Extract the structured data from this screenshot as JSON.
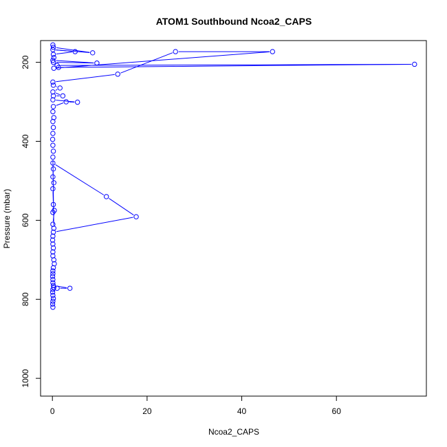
{
  "chart_data": {
    "type": "line",
    "title": "ATOM1 Southbound Ncoa2_CAPS",
    "xlabel": "Ncoa2_CAPS",
    "ylabel": "Pressure (mbar)",
    "xlim": [
      -2.5,
      79
    ],
    "ylim": [
      1045,
      145
    ],
    "y_reversed": true,
    "x_ticks": [
      0,
      20,
      40,
      60
    ],
    "y_ticks": [
      200,
      400,
      600,
      800,
      1000
    ],
    "grid": false,
    "series": [
      {
        "color": "#0000ff",
        "marker": "open-circle",
        "points": [
          [
            0.1,
            820
          ],
          [
            0.05,
            812
          ],
          [
            0.1,
            805
          ],
          [
            0.2,
            798
          ],
          [
            0.1,
            790
          ],
          [
            0.05,
            782
          ],
          [
            0.1,
            775
          ],
          [
            0.3,
            770
          ],
          [
            1,
            772
          ],
          [
            3.7,
            772
          ],
          [
            0.2,
            765
          ],
          [
            0.1,
            758
          ],
          [
            0.1,
            750
          ],
          [
            0.05,
            742
          ],
          [
            0.1,
            735
          ],
          [
            0.1,
            728
          ],
          [
            0.2,
            720
          ],
          [
            0.4,
            710
          ],
          [
            0.3,
            700
          ],
          [
            0.1,
            690
          ],
          [
            0.1,
            680
          ],
          [
            0.2,
            670
          ],
          [
            0.1,
            660
          ],
          [
            0.05,
            650
          ],
          [
            0.1,
            640
          ],
          [
            0.2,
            630
          ],
          [
            17.7,
            591
          ],
          [
            11.4,
            540
          ],
          [
            0.1,
            455
          ],
          [
            0.2,
            470
          ],
          [
            0.1,
            490
          ],
          [
            0.3,
            505
          ],
          [
            0.1,
            520
          ],
          [
            0.2,
            560
          ],
          [
            0.1,
            580
          ],
          [
            0.4,
            575
          ],
          [
            0.1,
            610
          ],
          [
            0.3,
            620
          ],
          [
            0.1,
            440
          ],
          [
            0.2,
            425
          ],
          [
            0.1,
            410
          ],
          [
            0.05,
            395
          ],
          [
            0.1,
            380
          ],
          [
            0.2,
            365
          ],
          [
            0.1,
            350
          ],
          [
            0.3,
            340
          ],
          [
            0.1,
            325
          ],
          [
            0.2,
            312
          ],
          [
            2.9,
            300
          ],
          [
            5.3,
            301
          ],
          [
            0.1,
            295
          ],
          [
            0.2,
            285
          ],
          [
            2.2,
            285
          ],
          [
            0.1,
            275
          ],
          [
            1.6,
            265
          ],
          [
            0.2,
            258
          ],
          [
            0.1,
            250
          ],
          [
            13.8,
            230
          ],
          [
            26,
            173
          ],
          [
            46.5,
            173
          ],
          [
            0.3,
            215
          ],
          [
            1.3,
            213
          ],
          [
            76.5,
            205
          ],
          [
            1,
            208
          ],
          [
            0.2,
            200
          ],
          [
            9.4,
            202
          ],
          [
            0.1,
            195
          ],
          [
            0.3,
            188
          ],
          [
            0.2,
            180
          ],
          [
            4.8,
            173
          ],
          [
            0.1,
            168
          ],
          [
            8.5,
            176
          ],
          [
            0.2,
            162
          ],
          [
            0.1,
            156
          ]
        ]
      }
    ]
  }
}
